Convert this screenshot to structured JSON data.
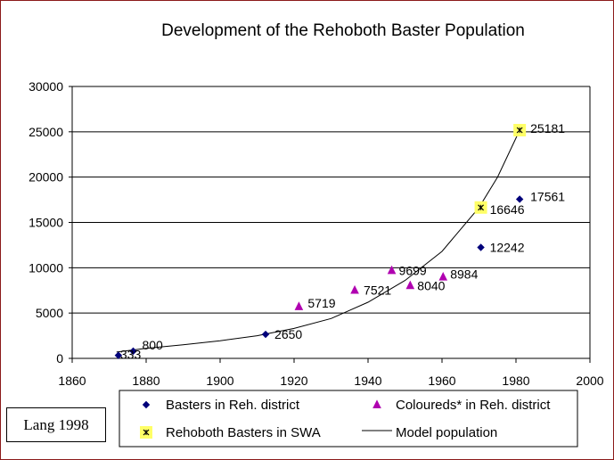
{
  "credit": "Lang 1998",
  "chart_data": {
    "type": "scatter",
    "title": "Development of the Rehoboth Baster Population",
    "xlabel": "",
    "ylabel": "",
    "xlim": [
      1860,
      2000
    ],
    "ylim": [
      0,
      30000
    ],
    "x_ticks": [
      "1860",
      "1880",
      "1900",
      "1920",
      "1940",
      "1960",
      "1980",
      "2000"
    ],
    "y_ticks": [
      "0",
      "5000",
      "10000",
      "15000",
      "20000",
      "25000",
      "30000"
    ],
    "grid": "horizontal",
    "legend_position": "bottom",
    "series": [
      {
        "name": "Basters in Reh. district",
        "marker": "diamond",
        "color": "#00007a",
        "points": [
          {
            "x": 1872.5,
            "y": 333,
            "label": "333"
          },
          {
            "x": 1876.5,
            "y": 800,
            "label": "800"
          },
          {
            "x": 1912.3,
            "y": 2650,
            "label": "2650"
          },
          {
            "x": 1970.5,
            "y": 12242,
            "label": "12242"
          },
          {
            "x": 1981,
            "y": 17561,
            "label": "17561"
          }
        ]
      },
      {
        "name": "Coloureds* in Reh. district",
        "marker": "triangle",
        "color": "#b000b0",
        "points": [
          {
            "x": 1921.3,
            "y": 5719,
            "label": "5719"
          },
          {
            "x": 1936.4,
            "y": 7521,
            "label": "7521"
          },
          {
            "x": 1946.4,
            "y": 9699,
            "label": "9699"
          },
          {
            "x": 1951.4,
            "y": 8040,
            "label": "8040"
          },
          {
            "x": 1960.3,
            "y": 8984,
            "label": "8984"
          }
        ]
      },
      {
        "name": "Rehoboth Basters in SWA",
        "marker": "x-square",
        "color": "#ffff66",
        "points": [
          {
            "x": 1970.5,
            "y": 16646,
            "label": "16646"
          },
          {
            "x": 1981,
            "y": 25181,
            "label": "25181"
          }
        ]
      },
      {
        "name": "Model population",
        "marker": "line",
        "color": "#000000",
        "points": [
          {
            "x": 1872,
            "y": 700
          },
          {
            "x": 1880,
            "y": 1100
          },
          {
            "x": 1890,
            "y": 1500
          },
          {
            "x": 1900,
            "y": 1950
          },
          {
            "x": 1910,
            "y": 2500
          },
          {
            "x": 1920,
            "y": 3300
          },
          {
            "x": 1930,
            "y": 4400
          },
          {
            "x": 1940,
            "y": 6200
          },
          {
            "x": 1950,
            "y": 8600
          },
          {
            "x": 1960,
            "y": 11800
          },
          {
            "x": 1970,
            "y": 16646
          },
          {
            "x": 1975,
            "y": 20000
          },
          {
            "x": 1981,
            "y": 25181
          }
        ]
      }
    ]
  }
}
